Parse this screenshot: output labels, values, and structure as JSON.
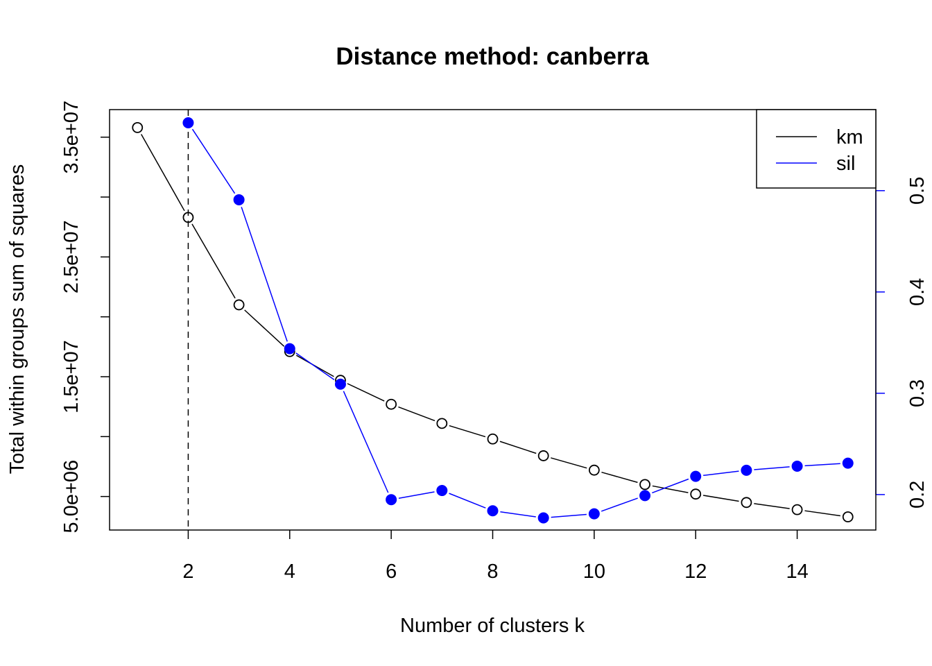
{
  "chart_data": {
    "type": "line",
    "title": "Distance method: canberra",
    "xlabel": "Number of clusters k",
    "ylabel": "Total within groups sum of squares",
    "x": [
      1,
      2,
      3,
      4,
      5,
      6,
      7,
      8,
      9,
      10,
      11,
      12,
      13,
      14,
      15
    ],
    "xlim": [
      0.45,
      15.55
    ],
    "x_ticks": [
      2,
      4,
      6,
      8,
      10,
      12,
      14
    ],
    "x_tick_labels": [
      "2",
      "4",
      "6",
      "8",
      "10",
      "12",
      "14"
    ],
    "ylim": [
      2200000.0,
      37300000.0
    ],
    "y_ticks": [
      5000000,
      10000000,
      15000000,
      20000000,
      25000000,
      30000000,
      35000000
    ],
    "y_tick_labels": [
      "5.0e+06",
      "",
      "1.5e+07",
      "",
      "2.5e+07",
      "",
      "3.5e+07"
    ],
    "y2lim": [
      0.165,
      0.58
    ],
    "y2_ticks": [
      0.2,
      0.3,
      0.4,
      0.5
    ],
    "y2_tick_labels": [
      "0.2",
      "0.3",
      "0.4",
      "0.5"
    ],
    "vline": {
      "x": 2,
      "style": "dashed",
      "color": "#000000"
    },
    "series": [
      {
        "name": "km",
        "axis": "left",
        "color": "#000000",
        "marker": "open-circle",
        "values": [
          35800000,
          28300000,
          21000000,
          17100000,
          14700000,
          12700000,
          11100000,
          9800000,
          8400000,
          7200000,
          6000000,
          5200000,
          4500000,
          3900000,
          3300000
        ]
      },
      {
        "name": "sil",
        "axis": "right",
        "color": "#0000ff",
        "marker": "filled-circle",
        "values": [
          null,
          0.567,
          0.491,
          0.344,
          0.309,
          0.195,
          0.204,
          0.184,
          0.177,
          0.181,
          0.199,
          0.218,
          0.224,
          0.228,
          0.231
        ]
      }
    ],
    "legend": {
      "position": "top-right",
      "entries": [
        "km",
        "sil"
      ]
    }
  }
}
